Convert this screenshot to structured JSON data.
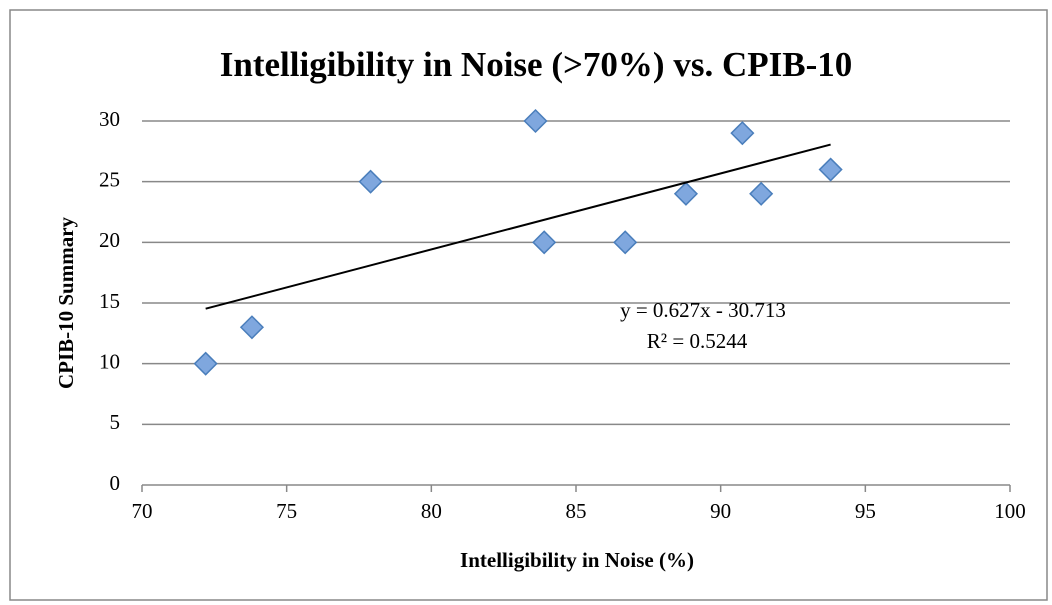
{
  "chart_data": {
    "type": "scatter",
    "title": "Intelligibility in Noise (>70%) vs. CPIB-10",
    "x_label": "Intelligibility in Noise (%)",
    "y_label": "CPIB-10 Summary",
    "series": [
      {
        "color": "#7fa7de",
        "x": [
          72.2,
          73.8,
          77.9,
          83.6,
          83.9,
          86.7,
          88.8,
          90.75,
          91.4,
          93.8
        ],
        "values": [
          10,
          13,
          25,
          30,
          20,
          20,
          24,
          29,
          24,
          26
        ]
      }
    ],
    "trendline": {
      "equation": "y = 0.627x - 30.713",
      "r_squared": "R² = 0.5244",
      "color": "#000000"
    },
    "xlim": [
      70,
      100
    ],
    "xticks": [
      70,
      75,
      80,
      85,
      90,
      95,
      100
    ],
    "ylim": [
      0,
      30
    ],
    "yticks": [
      0,
      5,
      10,
      15,
      20,
      25,
      30
    ],
    "grid": true
  }
}
